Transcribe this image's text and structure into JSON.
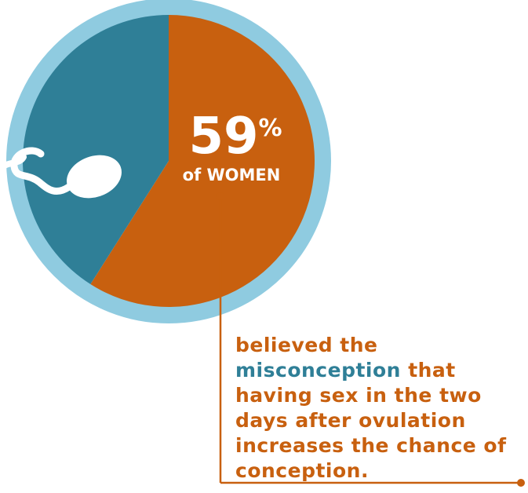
{
  "chart_data": {
    "type": "pie",
    "values": [
      59,
      41
    ],
    "value_labels": [
      "59%"
    ],
    "colors": [
      "#c8600f",
      "#2f7f97"
    ],
    "ring_color": "#8fcbe0",
    "label": "of WOMEN",
    "annotation": {
      "before": "believed the",
      "highlight": "misconception",
      "after": "that having sex in the two days after ovulation increases the chance of conception."
    }
  }
}
